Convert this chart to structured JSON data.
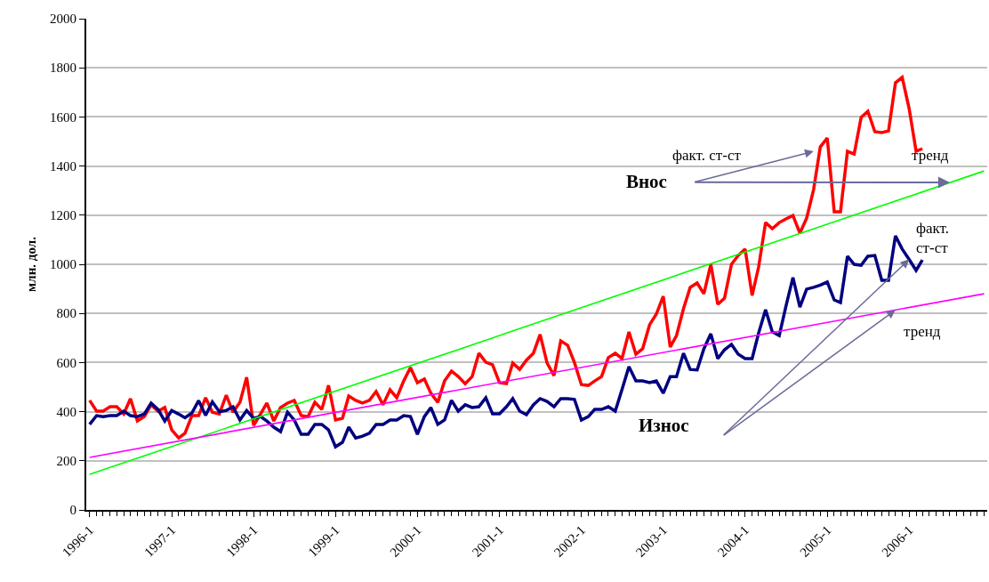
{
  "chart_data": {
    "type": "line",
    "ylabel": "млн. дол.",
    "x": [
      "1996-01",
      "1996-02",
      "1996-03",
      "1996-04",
      "1996-05",
      "1996-06",
      "1996-07",
      "1996-08",
      "1996-09",
      "1996-10",
      "1996-11",
      "1996-12",
      "1997-01",
      "1997-02",
      "1997-03",
      "1997-04",
      "1997-05",
      "1997-06",
      "1997-07",
      "1997-08",
      "1997-09",
      "1997-10",
      "1997-11",
      "1997-12",
      "1998-01",
      "1998-02",
      "1998-03",
      "1998-04",
      "1998-05",
      "1998-06",
      "1998-07",
      "1998-08",
      "1998-09",
      "1998-10",
      "1998-11",
      "1998-12",
      "1999-01",
      "1999-02",
      "1999-03",
      "1999-04",
      "1999-05",
      "1999-06",
      "1999-07",
      "1999-08",
      "1999-09",
      "1999-10",
      "1999-11",
      "1999-12",
      "2000-01",
      "2000-02",
      "2000-03",
      "2000-04",
      "2000-05",
      "2000-06",
      "2000-07",
      "2000-08",
      "2000-09",
      "2000-10",
      "2000-11",
      "2000-12",
      "2001-01",
      "2001-02",
      "2001-03",
      "2001-04",
      "2001-05",
      "2001-06",
      "2001-07",
      "2001-08",
      "2001-09",
      "2001-10",
      "2001-11",
      "2001-12",
      "2002-01",
      "2002-02",
      "2002-03",
      "2002-04",
      "2002-05",
      "2002-06",
      "2002-07",
      "2002-08",
      "2002-09",
      "2002-10",
      "2002-11",
      "2002-12",
      "2003-01",
      "2003-02",
      "2003-03",
      "2003-04",
      "2003-05",
      "2003-06",
      "2003-07",
      "2003-08",
      "2003-09",
      "2003-10",
      "2003-11",
      "2003-12",
      "2004-01",
      "2004-02",
      "2004-03",
      "2004-04",
      "2004-05",
      "2004-06",
      "2004-07",
      "2004-08",
      "2004-09",
      "2004-10",
      "2004-11",
      "2004-12",
      "2005-01",
      "2005-02",
      "2005-03",
      "2005-04",
      "2005-05",
      "2005-06",
      "2005-07",
      "2005-08",
      "2005-09",
      "2005-10",
      "2005-11",
      "2005-12",
      "2006-01",
      "2006-02",
      "2006-03"
    ],
    "series": [
      {
        "color": "#ff0000",
        "values": [
          446,
          402,
          402,
          420,
          420,
          391,
          453,
          362,
          380,
          428,
          402,
          417,
          326,
          293,
          312,
          384,
          384,
          457,
          398,
          391,
          467,
          398,
          438,
          540,
          344,
          391,
          435,
          362,
          417,
          435,
          446,
          384,
          380,
          438,
          409,
          507,
          366,
          373,
          464,
          446,
          435,
          446,
          482,
          428,
          489,
          457,
          525,
          580,
          518,
          533,
          475,
          438,
          525,
          565,
          543,
          514,
          543,
          638,
          601,
          591,
          518,
          514,
          598,
          572,
          610,
          638,
          714,
          598,
          547,
          688,
          670,
          600,
          510,
          507,
          525,
          543,
          620,
          638,
          616,
          725,
          634,
          656,
          754,
          797,
          870,
          663,
          710,
          819,
          906,
          924,
          880,
          1000,
          837,
          862,
          1000,
          1036,
          1062,
          873,
          989,
          1170,
          1145,
          1170,
          1185,
          1199,
          1127,
          1188,
          1304,
          1478,
          1514,
          1214,
          1214,
          1460,
          1449,
          1598,
          1623,
          1540,
          1536,
          1543,
          1739,
          1761,
          1634,
          1460,
          1471
        ]
      },
      {
        "color": "#000080",
        "values": [
          348,
          384,
          380,
          384,
          384,
          402,
          384,
          380,
          391,
          435,
          409,
          362,
          405,
          390,
          375,
          395,
          445,
          385,
          440,
          400,
          405,
          420,
          366,
          405,
          373,
          380,
          362,
          337,
          319,
          398,
          366,
          308,
          308,
          348,
          348,
          326,
          257,
          275,
          337,
          293,
          300,
          312,
          348,
          348,
          366,
          366,
          384,
          380,
          308,
          380,
          417,
          348,
          366,
          446,
          402,
          428,
          417,
          420,
          457,
          391,
          391,
          420,
          453,
          402,
          388,
          428,
          453,
          442,
          420,
          453,
          453,
          450,
          366,
          380,
          409,
          409,
          420,
          402,
          490,
          583,
          525,
          525,
          518,
          525,
          475,
          543,
          543,
          638,
          572,
          570,
          656,
          717,
          616,
          652,
          674,
          634,
          616,
          616,
          720,
          815,
          725,
          710,
          830,
          946,
          826,
          899,
          906,
          915,
          928,
          855,
          844,
          1033,
          1000,
          996,
          1033,
          1036,
          935,
          935,
          1116,
          1062,
          1020,
          975,
          1018
        ]
      },
      {
        "color": "#00ff00",
        "x": [
          "1996-01",
          "2000-12",
          "2001-02",
          "2006-12"
        ],
        "values": [
          145,
          700,
          720,
          1380
        ]
      },
      {
        "color": "#ff00ff",
        "x": [
          "1996-01",
          "2006-12"
        ],
        "values": [
          214,
          880
        ]
      }
    ],
    "xlim": [
      "1995-12-17",
      "2006-12-15"
    ],
    "xticks": [
      {
        "value": "1996-01",
        "label": "1996-1"
      },
      {
        "value": "1997-01",
        "label": "1997-1"
      },
      {
        "value": "1998-01",
        "label": "1998-1"
      },
      {
        "value": "1999-01",
        "label": "1999-1"
      },
      {
        "value": "2000-01",
        "label": "2000-1"
      },
      {
        "value": "2001-01",
        "label": "2001-1"
      },
      {
        "value": "2002-01",
        "label": "2002-1"
      },
      {
        "value": "2003-01",
        "label": "2003-1"
      },
      {
        "value": "2004-01",
        "label": "2004-1"
      },
      {
        "value": "2005-01",
        "label": "2005-1"
      },
      {
        "value": "2006-01",
        "label": "2006-1"
      }
    ],
    "ylim": [
      0,
      2000
    ],
    "yticks": [
      0,
      200,
      400,
      600,
      800,
      1000,
      1200,
      1400,
      1600,
      1800,
      2000
    ],
    "grid": "y",
    "marker": "none",
    "line_style": "solid",
    "annotations": [
      "Внос",
      {
        "text": "факт. ст-ст",
        "x": "2004-11",
        "y": 1460
      },
      {
        "text": "тренд",
        "x": "2006-07",
        "y": 1333
      },
      "Износ",
      {
        "text": "факт.\nст-ст",
        "x": "2006-01",
        "y": 1020
      },
      {
        "text": "тренд",
        "x": "2005-11",
        "y": 814
      }
    ]
  }
}
